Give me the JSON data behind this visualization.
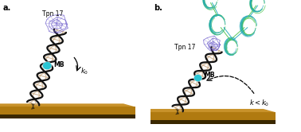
{
  "bg_color": "#ffffff",
  "gold_color_top": "#c8922a",
  "gold_color_mid": "#b07a10",
  "gold_color_dark": "#3a2800",
  "dna_outer_color": "#111111",
  "dna_inner_color": "#c8a882",
  "mb_color": "#29c5d4",
  "protein_color": "#7060cc",
  "ab_color1": "#4ac44a",
  "ab_color2": "#20a8b8",
  "label_a": "a.",
  "label_b": "b.",
  "tpn_label": "Tpn 17",
  "mb_label": "MB",
  "k0_label": "$k_0$",
  "k_less_label": "$k < k_0$",
  "fig_width": 3.78,
  "fig_height": 1.66,
  "dpi": 100
}
